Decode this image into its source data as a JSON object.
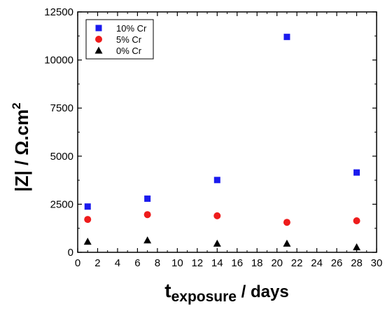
{
  "chart_data": {
    "type": "scatter",
    "title": "",
    "xlabel": {
      "main": "t",
      "subscript": "exposure",
      "suffix": " / days"
    },
    "ylabel": {
      "text": "|Z| / Ω.cm",
      "superscript": "2"
    },
    "xlim": [
      0,
      30
    ],
    "ylim": [
      0,
      12500
    ],
    "x_ticks": [
      0,
      2,
      4,
      6,
      8,
      10,
      12,
      14,
      16,
      18,
      20,
      22,
      24,
      26,
      28,
      30
    ],
    "y_ticks": [
      0,
      2500,
      5000,
      7500,
      10000,
      12500
    ],
    "grid": false,
    "legend_position": "top-left",
    "series": [
      {
        "name": "10% Cr",
        "marker": "square",
        "color": "#1a1aee",
        "x": [
          1,
          7,
          14,
          21,
          28
        ],
        "y": [
          2380,
          2790,
          3760,
          11200,
          4150
        ]
      },
      {
        "name": "5% Cr",
        "marker": "circle",
        "color": "#ee1c1c",
        "x": [
          1,
          7,
          14,
          21,
          28
        ],
        "y": [
          1710,
          1960,
          1900,
          1560,
          1640
        ]
      },
      {
        "name": "0% Cr",
        "marker": "triangle",
        "color": "#000000",
        "x": [
          1,
          7,
          14,
          21,
          28
        ],
        "y": [
          560,
          630,
          460,
          460,
          270
        ]
      }
    ]
  }
}
